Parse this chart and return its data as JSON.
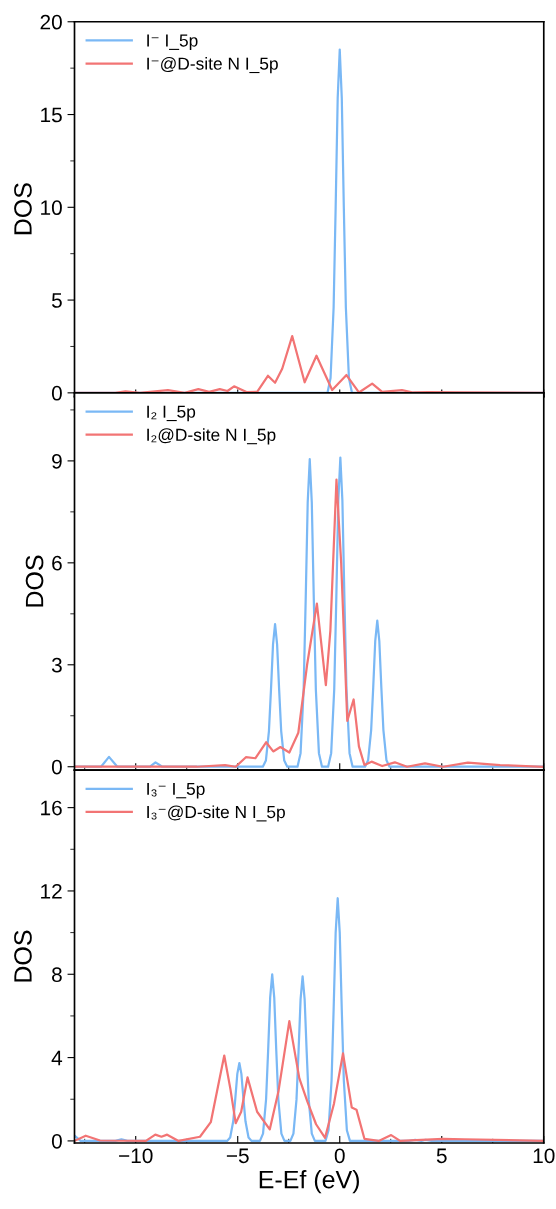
{
  "chart_data": [
    {
      "type": "line",
      "ylabel": "DOS",
      "xlim": [
        -13,
        10
      ],
      "xticks": [
        -10,
        -5,
        0,
        5,
        10
      ],
      "ylim": [
        -0.2,
        20
      ],
      "yticks": [
        0,
        5,
        10,
        15,
        20
      ],
      "tick_labels": "y",
      "legend": "top left",
      "series": [
        {
          "name": "I⁻ I_5p",
          "color": "#7ab8f5",
          "x": [
            -13,
            -0.6,
            -0.45,
            -0.3,
            -0.2,
            -0.1,
            0,
            0.1,
            0.2,
            0.3,
            0.45,
            0.6,
            10
          ],
          "values": [
            0,
            0,
            0.8,
            4.6,
            10.0,
            15.9,
            18.5,
            15.9,
            10.0,
            4.6,
            0.8,
            0,
            0
          ]
        },
        {
          "name": "I⁻@D-site N I_5p",
          "color": "#f27474",
          "x": [
            -13,
            -11,
            -10.5,
            -9.8,
            -8.42,
            -7.6,
            -6.93,
            -6.4,
            -5.88,
            -5.5,
            -5.18,
            -4.57,
            -4.04,
            -3.52,
            -3.17,
            -2.82,
            -2.33,
            -1.72,
            -1.14,
            -0.37,
            0.33,
            0.94,
            1.59,
            2.08,
            3.05,
            3.6,
            4.36,
            6,
            10
          ],
          "values": [
            0,
            0,
            0.08,
            0,
            0.15,
            0,
            0.2,
            0.05,
            0.2,
            0.1,
            0.35,
            0.04,
            0.06,
            0.92,
            0.54,
            1.3,
            3.06,
            0.57,
            2.0,
            0.15,
            0.96,
            0.02,
            0.5,
            0.05,
            0.15,
            0.02,
            0.04,
            0.02,
            0
          ]
        }
      ]
    },
    {
      "type": "line",
      "ylabel": "DOS",
      "xlim": [
        -13,
        10
      ],
      "xticks": [
        -10,
        -5,
        0,
        5,
        10
      ],
      "ylim": [
        -0.1,
        11
      ],
      "yticks": [
        0,
        3,
        6,
        9
      ],
      "tick_labels": "y",
      "legend": "top left",
      "series": [
        {
          "name": "I₂ I_5p",
          "color": "#7ab8f5",
          "x": [
            -13,
            -11.7,
            -11.31,
            -10.9,
            -9.3,
            -9.03,
            -8.7,
            -3.77,
            -3.62,
            -3.47,
            -3.37,
            -3.27,
            -3.17,
            -3.07,
            -2.97,
            -2.87,
            -2.72,
            -2.57,
            -2.07,
            -1.92,
            -1.77,
            -1.67,
            -1.57,
            -1.47,
            -1.37,
            -1.27,
            -1.17,
            -1.02,
            -0.87,
            -0.57,
            -0.42,
            -0.27,
            -0.17,
            -0.07,
            0.03,
            0.13,
            0.23,
            0.33,
            0.48,
            0.63,
            1.24,
            1.39,
            1.54,
            1.64,
            1.74,
            1.84,
            1.94,
            2.04,
            2.14,
            2.29,
            2.44,
            10
          ],
          "values": [
            0,
            0,
            0.29,
            0,
            0,
            0.13,
            0,
            0,
            0.18,
            1.05,
            2.27,
            3.6,
            4.2,
            3.6,
            2.27,
            1.05,
            0.18,
            0,
            0,
            0.4,
            2.26,
            4.89,
            7.78,
            9.05,
            7.78,
            4.89,
            2.26,
            0.4,
            0,
            0,
            0.4,
            2.28,
            4.91,
            7.83,
            9.1,
            7.83,
            4.91,
            2.28,
            0.4,
            0,
            0,
            0.19,
            1.08,
            2.32,
            3.7,
            4.3,
            3.7,
            2.32,
            1.08,
            0.19,
            0,
            0
          ]
        },
        {
          "name": "I₂@D-site N I_5p",
          "color": "#f27474",
          "x": [
            -13,
            -7,
            -5.62,
            -5.1,
            -4.6,
            -4.13,
            -3.61,
            -3.26,
            -2.91,
            -2.47,
            -2.03,
            -1.6,
            -1.12,
            -0.68,
            -0.46,
            -0.16,
            0.07,
            0.37,
            0.68,
            0.94,
            1.21,
            1.56,
            2.08,
            2.7,
            3.3,
            4.18,
            5.06,
            6.28,
            7.86,
            9.96
          ],
          "values": [
            0,
            0,
            0.05,
            0,
            0.28,
            0.25,
            0.72,
            0.45,
            0.58,
            0.42,
            1.0,
            3.0,
            4.8,
            2.4,
            4.0,
            8.45,
            6.0,
            1.35,
            1.98,
            0.6,
            0.05,
            0.15,
            0.02,
            0.13,
            0,
            0.1,
            0,
            0.12,
            0.05,
            0
          ]
        }
      ]
    },
    {
      "type": "line",
      "ylabel": "DOS",
      "xlabel": "E-Ef (eV)",
      "xlim": [
        -13,
        10
      ],
      "xticks": [
        -10,
        -5,
        0,
        5,
        10
      ],
      "ylim": [
        -0.1,
        17.8
      ],
      "yticks": [
        0,
        4,
        8,
        12,
        16
      ],
      "legend": "top left",
      "series": [
        {
          "name": "I₃⁻ I_5p",
          "color": "#7ab8f5",
          "x": [
            -13,
            -12.7,
            -11.0,
            -10.7,
            -10.4,
            -5.52,
            -5.37,
            -5.22,
            -5.12,
            -5.02,
            -4.92,
            -4.82,
            -4.72,
            -4.62,
            -4.47,
            -4.32,
            -3.91,
            -3.76,
            -3.61,
            -3.51,
            -3.41,
            -3.31,
            -3.21,
            -3.11,
            -3.01,
            -2.86,
            -2.71,
            -2.42,
            -2.27,
            -2.12,
            -2.02,
            -1.92,
            -1.82,
            -1.72,
            -1.62,
            -1.52,
            -1.37,
            -1.22,
            -0.7,
            -0.55,
            -0.4,
            -0.3,
            -0.2,
            -0.1,
            0.0,
            0.1,
            0.2,
            0.35,
            0.5,
            3.4,
            3.7,
            4.0,
            4.2,
            4.5,
            10
          ],
          "values": [
            0.25,
            0,
            0,
            0.08,
            0,
            0,
            0.16,
            0.94,
            2.02,
            3.22,
            3.74,
            3.22,
            2.02,
            0.94,
            0.16,
            0,
            0,
            0.35,
            2.0,
            4.32,
            6.88,
            8.0,
            6.88,
            4.32,
            2.0,
            0.35,
            0,
            0,
            0.35,
            1.98,
            4.27,
            6.79,
            7.9,
            6.79,
            4.27,
            1.98,
            0.35,
            0,
            0,
            0.51,
            2.91,
            6.29,
            10.0,
            11.65,
            10.0,
            6.29,
            2.91,
            0.51,
            0,
            0,
            0.05,
            0,
            0.05,
            0,
            0
          ]
        },
        {
          "name": "I₃⁻@D-site N I_5p",
          "color": "#f27474",
          "x": [
            -13,
            -12.45,
            -11.75,
            -9.5,
            -9.04,
            -8.74,
            -8.46,
            -7.9,
            -6.85,
            -6.32,
            -5.97,
            -5.66,
            -5.36,
            -5.1,
            -4.83,
            -4.52,
            -4.05,
            -3.43,
            -3.0,
            -2.47,
            -1.98,
            -1.59,
            -1.16,
            -0.72,
            -0.28,
            0.16,
            0.59,
            0.82,
            1.21,
            1.91,
            2.52,
            2.96,
            5.06,
            6.1,
            9.96
          ],
          "values": [
            0,
            0.25,
            0.02,
            0,
            0.3,
            0.2,
            0.3,
            0,
            0.2,
            0.9,
            2.6,
            4.1,
            2.5,
            0.85,
            1.4,
            3.05,
            1.4,
            0.55,
            2.4,
            5.75,
            3.0,
            1.9,
            0.8,
            0.15,
            1.8,
            4.2,
            1.6,
            1.5,
            0.1,
            0,
            0.28,
            0,
            0.1,
            0.08,
            0
          ]
        }
      ]
    }
  ]
}
